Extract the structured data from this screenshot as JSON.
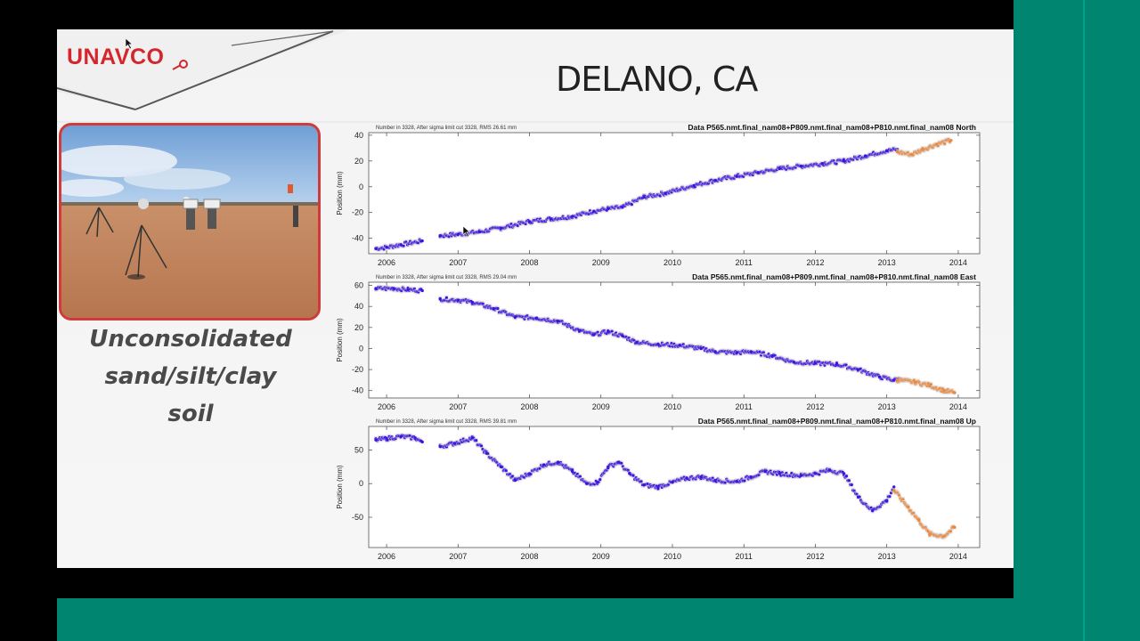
{
  "slide": {
    "logo_text": "UNAVCO",
    "title": "DELANO, CA",
    "caption_lines": [
      "Unconsolidated",
      "sand/silt/clay",
      "soil"
    ]
  },
  "colors": {
    "accent_red": "#d13a3a",
    "teal": "#008571",
    "series_main": "#3d13e6",
    "series_recent": "#f0883a"
  },
  "chart_data": [
    {
      "type": "scatter",
      "title": "Data P565.nmt.final_nam08+P809.nmt.final_nam08+P810.nmt.final_nam08 North",
      "subtitle": "Number in   3328, After sigma limit cut   3328, RMS  26.61 mm",
      "ylabel": "Position (mm)",
      "xlim": [
        2005.75,
        2014.3
      ],
      "ylim": [
        -52,
        42
      ],
      "yticks": [
        -40,
        -20,
        0,
        20,
        40
      ],
      "xticks": [
        2006,
        2007,
        2008,
        2009,
        2010,
        2011,
        2012,
        2013,
        2014
      ],
      "series": [
        {
          "points": [
            [
              2005.85,
              -48
            ],
            [
              2006.0,
              -47
            ],
            [
              2006.2,
              -45
            ],
            [
              2006.5,
              -42
            ],
            [
              2006.75,
              -38
            ],
            [
              2007.0,
              -37
            ],
            [
              2007.3,
              -35
            ],
            [
              2007.6,
              -32
            ],
            [
              2008.0,
              -27
            ],
            [
              2008.3,
              -25
            ],
            [
              2008.6,
              -23
            ],
            [
              2008.9,
              -19
            ],
            [
              2009.1,
              -17
            ],
            [
              2009.3,
              -16
            ],
            [
              2009.6,
              -8
            ],
            [
              2009.9,
              -5
            ],
            [
              2010.3,
              1
            ],
            [
              2010.6,
              5
            ],
            [
              2010.9,
              8
            ],
            [
              2011.2,
              11
            ],
            [
              2011.5,
              14
            ],
            [
              2011.8,
              16
            ],
            [
              2012.1,
              18
            ],
            [
              2012.4,
              20
            ],
            [
              2012.7,
              24
            ],
            [
              2013.0,
              28
            ],
            [
              2013.15,
              29
            ]
          ]
        },
        {
          "points": [
            [
              2013.15,
              27
            ],
            [
              2013.35,
              25
            ],
            [
              2013.5,
              29
            ],
            [
              2013.7,
              33
            ],
            [
              2013.9,
              36
            ]
          ]
        }
      ]
    },
    {
      "type": "scatter",
      "title": "Data P565.nmt.final_nam08+P809.nmt.final_nam08+P810.nmt.final_nam08 East",
      "subtitle": "Number in   3328, After sigma limit cut   3328, RMS  29.04 mm",
      "ylabel": "Position (mm)",
      "xlim": [
        2005.75,
        2014.3
      ],
      "ylim": [
        -47,
        63
      ],
      "yticks": [
        -40,
        -20,
        0,
        20,
        40,
        60
      ],
      "xticks": [
        2006,
        2007,
        2008,
        2009,
        2010,
        2011,
        2012,
        2013,
        2014
      ],
      "series": [
        {
          "points": [
            [
              2005.85,
              57
            ],
            [
              2006.1,
              57
            ],
            [
              2006.3,
              56
            ],
            [
              2006.5,
              55
            ],
            [
              2006.75,
              47
            ],
            [
              2007.0,
              46
            ],
            [
              2007.2,
              44
            ],
            [
              2007.5,
              38
            ],
            [
              2007.8,
              30
            ],
            [
              2008.1,
              29
            ],
            [
              2008.4,
              26
            ],
            [
              2008.7,
              17
            ],
            [
              2008.9,
              13
            ],
            [
              2009.1,
              16
            ],
            [
              2009.3,
              12
            ],
            [
              2009.5,
              6
            ],
            [
              2009.8,
              4
            ],
            [
              2010.1,
              3
            ],
            [
              2010.4,
              0
            ],
            [
              2010.6,
              -3
            ],
            [
              2010.9,
              -4
            ],
            [
              2011.1,
              -3
            ],
            [
              2011.4,
              -7
            ],
            [
              2011.7,
              -13
            ],
            [
              2012.0,
              -14
            ],
            [
              2012.3,
              -15
            ],
            [
              2012.6,
              -20
            ],
            [
              2012.9,
              -27
            ],
            [
              2013.1,
              -30
            ],
            [
              2013.2,
              -29
            ]
          ]
        },
        {
          "points": [
            [
              2013.15,
              -30
            ],
            [
              2013.4,
              -32
            ],
            [
              2013.6,
              -35
            ],
            [
              2013.8,
              -40
            ],
            [
              2013.95,
              -42
            ]
          ]
        }
      ]
    },
    {
      "type": "scatter",
      "title": "Data P565.nmt.final_nam08+P809.nmt.final_nam08+P810.nmt.final_nam08 Up",
      "subtitle": "Number in   3328, After sigma limit cut   3328, RMS  39.81 mm",
      "ylabel": "Position (mm)",
      "xlim": [
        2005.75,
        2014.3
      ],
      "ylim": [
        -95,
        85
      ],
      "yticks": [
        -50,
        0,
        50
      ],
      "xticks": [
        2006,
        2007,
        2008,
        2009,
        2010,
        2011,
        2012,
        2013,
        2014
      ],
      "series": [
        {
          "points": [
            [
              2005.85,
              65
            ],
            [
              2006.0,
              67
            ],
            [
              2006.2,
              70
            ],
            [
              2006.4,
              68
            ],
            [
              2006.5,
              62
            ],
            [
              2006.75,
              55
            ],
            [
              2006.95,
              60
            ],
            [
              2007.2,
              68
            ],
            [
              2007.4,
              45
            ],
            [
              2007.6,
              25
            ],
            [
              2007.8,
              5
            ],
            [
              2008.0,
              15
            ],
            [
              2008.2,
              28
            ],
            [
              2008.4,
              32
            ],
            [
              2008.6,
              18
            ],
            [
              2008.8,
              0
            ],
            [
              2008.95,
              2
            ],
            [
              2009.1,
              25
            ],
            [
              2009.25,
              32
            ],
            [
              2009.4,
              15
            ],
            [
              2009.6,
              -2
            ],
            [
              2009.8,
              -5
            ],
            [
              2010.0,
              2
            ],
            [
              2010.2,
              8
            ],
            [
              2010.4,
              10
            ],
            [
              2010.6,
              5
            ],
            [
              2010.9,
              3
            ],
            [
              2011.1,
              10
            ],
            [
              2011.3,
              18
            ],
            [
              2011.5,
              15
            ],
            [
              2011.8,
              12
            ],
            [
              2012.0,
              15
            ],
            [
              2012.2,
              20
            ],
            [
              2012.4,
              15
            ],
            [
              2012.6,
              -20
            ],
            [
              2012.8,
              -40
            ],
            [
              2013.0,
              -25
            ],
            [
              2013.1,
              -5
            ]
          ]
        },
        {
          "points": [
            [
              2013.1,
              -10
            ],
            [
              2013.3,
              -35
            ],
            [
              2013.45,
              -55
            ],
            [
              2013.6,
              -75
            ],
            [
              2013.8,
              -78
            ],
            [
              2013.95,
              -65
            ]
          ]
        }
      ]
    }
  ]
}
